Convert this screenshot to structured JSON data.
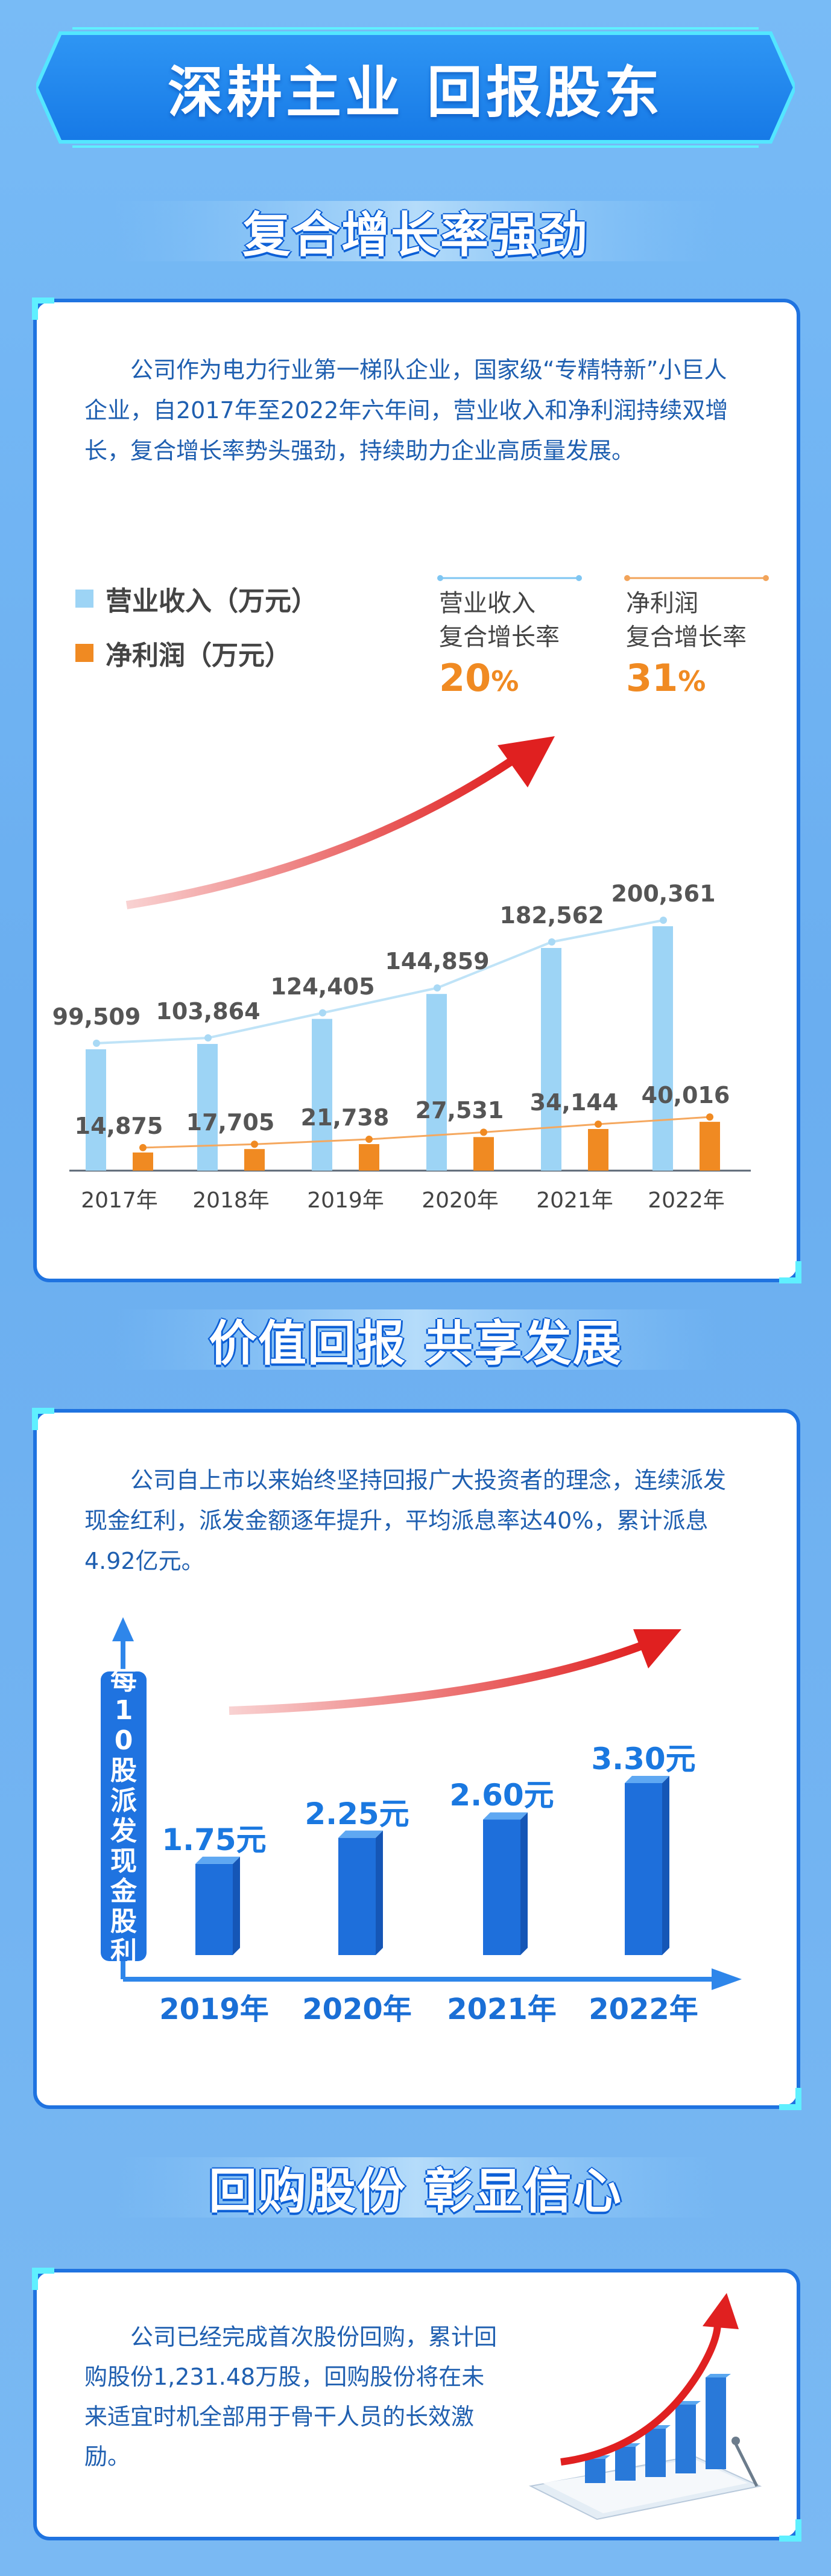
{
  "header": {
    "title": "深耕主业 回报股东"
  },
  "section1": {
    "title": "复合增长率强劲",
    "paragraph": "公司作为电力行业第一梯队企业，国家级“专精特新”小巨人企业，自2017年至2022年六年间，营业收入和净利润持续双增长，复合增长率势头强劲，持续助力企业高质量发展。",
    "stats": [
      {
        "label1": "营业收入",
        "label2": "复合增长率",
        "value": "20",
        "unit": "%"
      },
      {
        "label1": "净利润",
        "label2": "复合增长率",
        "value": "31",
        "unit": "%"
      }
    ]
  },
  "section2": {
    "title": "价值回报 共享发展",
    "paragraph": "公司自上市以来始终坚持回报广大投资者的理念，连续派发现金红利，派发金额逐年提升，平均派息率达40%，累计派息4.92亿元。"
  },
  "section3": {
    "title": "回购股份 彰显信心",
    "paragraph": "公司已经完成首次股份回购，累计回购股份1,231.48万股，回购股份将在未来适宜时机全部用于骨干人员的长效激励。"
  },
  "colors": {
    "revenue": "#9dd4f5",
    "profit": "#f08a22",
    "accent": "#1a78e0",
    "arrow": "#e02020"
  },
  "chart_data": [
    {
      "type": "bar",
      "categories": [
        "2017年",
        "2018年",
        "2019年",
        "2020年",
        "2021年",
        "2022年"
      ],
      "series": [
        {
          "name": "营业收入（万元）",
          "values": [
            99509,
            103864,
            124405,
            144859,
            182562,
            200361
          ],
          "labels": [
            "99,509",
            "103,864",
            "124,405",
            "144,859",
            "182,562",
            "200,361"
          ]
        },
        {
          "name": "净利润（万元）",
          "values": [
            14875,
            17705,
            21738,
            27531,
            34144,
            40016
          ],
          "labels": [
            "14,875",
            "17,705",
            "21,738",
            "27,531",
            "34,144",
            "40,016"
          ]
        }
      ],
      "ylim": [
        0,
        200361
      ],
      "legend": "top-left"
    },
    {
      "type": "bar",
      "categories": [
        "2019年",
        "2020年",
        "2021年",
        "2022年"
      ],
      "values": [
        1.75,
        2.25,
        2.6,
        3.3
      ],
      "labels": [
        "1.75元",
        "2.25元",
        "2.60元",
        "3.30元"
      ],
      "ylabel": "每10股派发现金股利"
    }
  ]
}
